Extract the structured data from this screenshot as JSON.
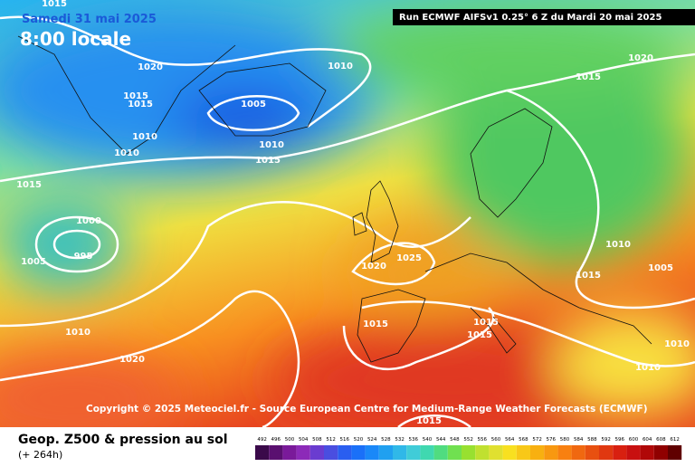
{
  "header": {
    "date": "Samedi 31 mai 2025",
    "time": "8:00 locale",
    "run": "Run ECMWF AIFSv1 0.25° 6 Z du Mardi 20 mai 2025"
  },
  "copyright": "Copyright © 2025 Meteociel.fr - Source European Centre for Medium-Range Weather Forecasts (ECMWF)",
  "footer": {
    "title": "Geop. Z500 & pression au sol",
    "lead": "(+ 264h)"
  },
  "isobar_labels": [
    "1015",
    "1020",
    "1015",
    "1015",
    "1010",
    "1005",
    "1010",
    "1010",
    "1010",
    "1015",
    "1015",
    "1000",
    "995",
    "1005",
    "1020",
    "1015",
    "1025",
    "1020",
    "1010",
    "1015",
    "1005",
    "1015",
    "1015",
    "1015",
    "1010",
    "1020",
    "1010",
    "1010",
    "1015"
  ],
  "colorbar": {
    "labels": [
      "492",
      "496",
      "500",
      "504",
      "508",
      "512",
      "516",
      "520",
      "524",
      "528",
      "532",
      "536",
      "540",
      "544",
      "548",
      "552",
      "556",
      "560",
      "564",
      "568",
      "572",
      "576",
      "580",
      "584",
      "588",
      "592",
      "596",
      "600",
      "604",
      "608",
      "612"
    ],
    "colors": [
      "#3a0a4a",
      "#5a1070",
      "#7a1a9a",
      "#8c2ab8",
      "#6a3cd0",
      "#4a4ee0",
      "#2a5ef0",
      "#1a70f8",
      "#1a88f8",
      "#20a0f0",
      "#30b8e8",
      "#40ccd8",
      "#40d8b0",
      "#50dc80",
      "#70e050",
      "#98e030",
      "#c0e030",
      "#e0e030",
      "#f8e020",
      "#f8c818",
      "#f8b010",
      "#f89810",
      "#f88010",
      "#f06810",
      "#e85010",
      "#e03810",
      "#d82010",
      "#c81010",
      "#b00808",
      "#900000",
      "#600000"
    ]
  }
}
